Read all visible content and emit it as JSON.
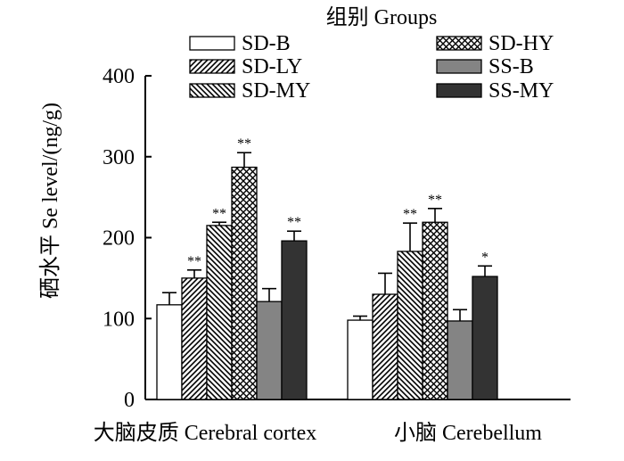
{
  "chart_data": {
    "type": "bar",
    "legend_title": "组别 Groups",
    "ylabel": "硒水平  Se level/(ng/g)",
    "ylim": [
      0,
      400
    ],
    "yticks": [
      "0",
      "100",
      "200",
      "300",
      "400"
    ],
    "grid": false,
    "legend_placement": "top",
    "categories": [
      "大脑皮质 Cerebral cortex",
      "小脑  Cerebellum"
    ],
    "series": [
      {
        "name": "SD-B",
        "pattern": "white",
        "values": [
          117,
          98
        ],
        "errors": [
          15,
          5
        ],
        "marks": [
          "",
          ""
        ]
      },
      {
        "name": "SD-LY",
        "pattern": "hatch-right",
        "values": [
          150,
          130
        ],
        "errors": [
          10,
          26
        ],
        "marks": [
          "**",
          ""
        ]
      },
      {
        "name": "SD-MY",
        "pattern": "hatch-left",
        "values": [
          215,
          183
        ],
        "errors": [
          4,
          35
        ],
        "marks": [
          "**",
          "**"
        ]
      },
      {
        "name": "SD-HY",
        "pattern": "crosshatch",
        "values": [
          287,
          219
        ],
        "errors": [
          18,
          17
        ],
        "marks": [
          "**",
          "**"
        ]
      },
      {
        "name": "SS-B",
        "pattern": "gray",
        "values": [
          121,
          97
        ],
        "errors": [
          16,
          14
        ],
        "marks": [
          "",
          ""
        ]
      },
      {
        "name": "SS-MY",
        "pattern": "dark",
        "values": [
          196,
          152
        ],
        "errors": [
          12,
          13
        ],
        "marks": [
          "**",
          "*"
        ]
      }
    ]
  }
}
